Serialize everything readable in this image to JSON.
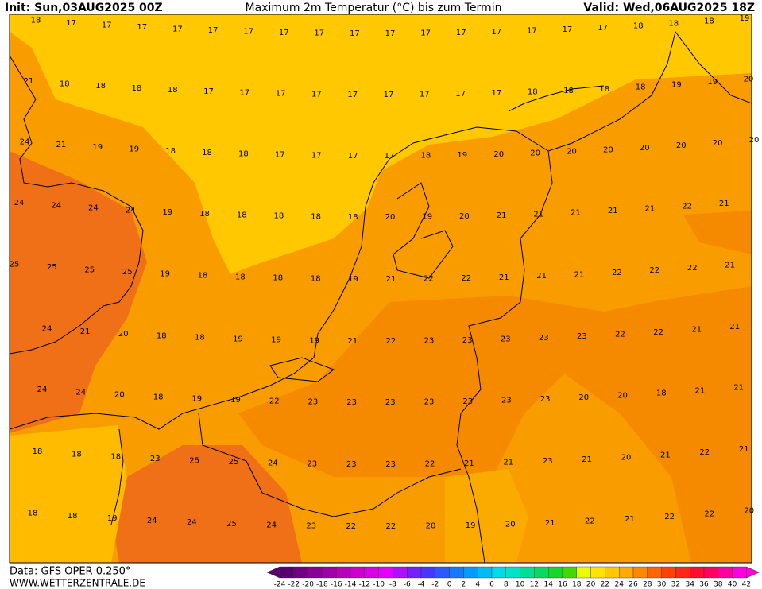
{
  "header": {
    "init": "Init: Sun,03AUG2025 00Z",
    "title": "Maximum 2m Temperatur (°C) bis zum Termin",
    "valid": "Valid: Wed,06AUG2025 18Z"
  },
  "map": {
    "rows": [
      [
        18,
        17,
        17,
        17,
        17,
        17,
        17,
        17,
        17,
        17,
        17,
        17,
        17,
        17,
        17,
        17,
        17,
        18,
        18,
        18,
        19
      ],
      [
        21,
        18,
        18,
        18,
        18,
        17,
        17,
        17,
        17,
        17,
        17,
        17,
        17,
        17,
        18,
        18,
        18,
        18,
        19,
        19,
        20
      ],
      [
        24,
        21,
        19,
        19,
        18,
        18,
        18,
        17,
        17,
        17,
        17,
        18,
        19,
        20,
        20,
        20,
        20,
        20,
        20,
        20,
        20
      ],
      [
        24,
        24,
        24,
        24,
        19,
        18,
        18,
        18,
        18,
        18,
        20,
        19,
        20,
        21,
        21,
        21,
        21,
        21,
        22,
        21
      ],
      [
        25,
        25,
        25,
        25,
        19,
        18,
        18,
        18,
        18,
        19,
        21,
        22,
        22,
        21,
        21,
        21,
        22,
        22,
        22,
        21
      ],
      [
        24,
        21,
        20,
        18,
        18,
        19,
        19,
        19,
        21,
        22,
        23,
        23,
        23,
        23,
        23,
        22,
        22,
        21,
        21
      ],
      [
        24,
        24,
        20,
        18,
        19,
        19,
        22,
        23,
        23,
        23,
        23,
        23,
        23,
        23,
        20,
        20,
        18,
        21,
        21
      ],
      [
        18,
        18,
        18,
        23,
        25,
        25,
        24,
        23,
        23,
        23,
        22,
        21,
        21,
        23,
        21,
        20,
        21,
        22,
        21
      ],
      [
        18,
        18,
        19,
        24,
        24,
        25,
        24,
        23,
        22,
        22,
        20,
        19,
        20,
        21,
        22,
        21,
        22,
        22,
        20
      ]
    ]
  },
  "colorbar": {
    "labels": [
      -24,
      -22,
      -20,
      -18,
      -16,
      -14,
      -12,
      -10,
      -8,
      -6,
      -4,
      -2,
      0,
      2,
      4,
      6,
      8,
      10,
      12,
      14,
      16,
      18,
      20,
      22,
      24,
      26,
      28,
      30,
      32,
      34,
      36,
      38,
      40,
      42
    ]
  },
  "footer": {
    "source": "Data: GFS OPER 0.250°",
    "website": "WWW.WETTERZENTRALE.DE"
  }
}
